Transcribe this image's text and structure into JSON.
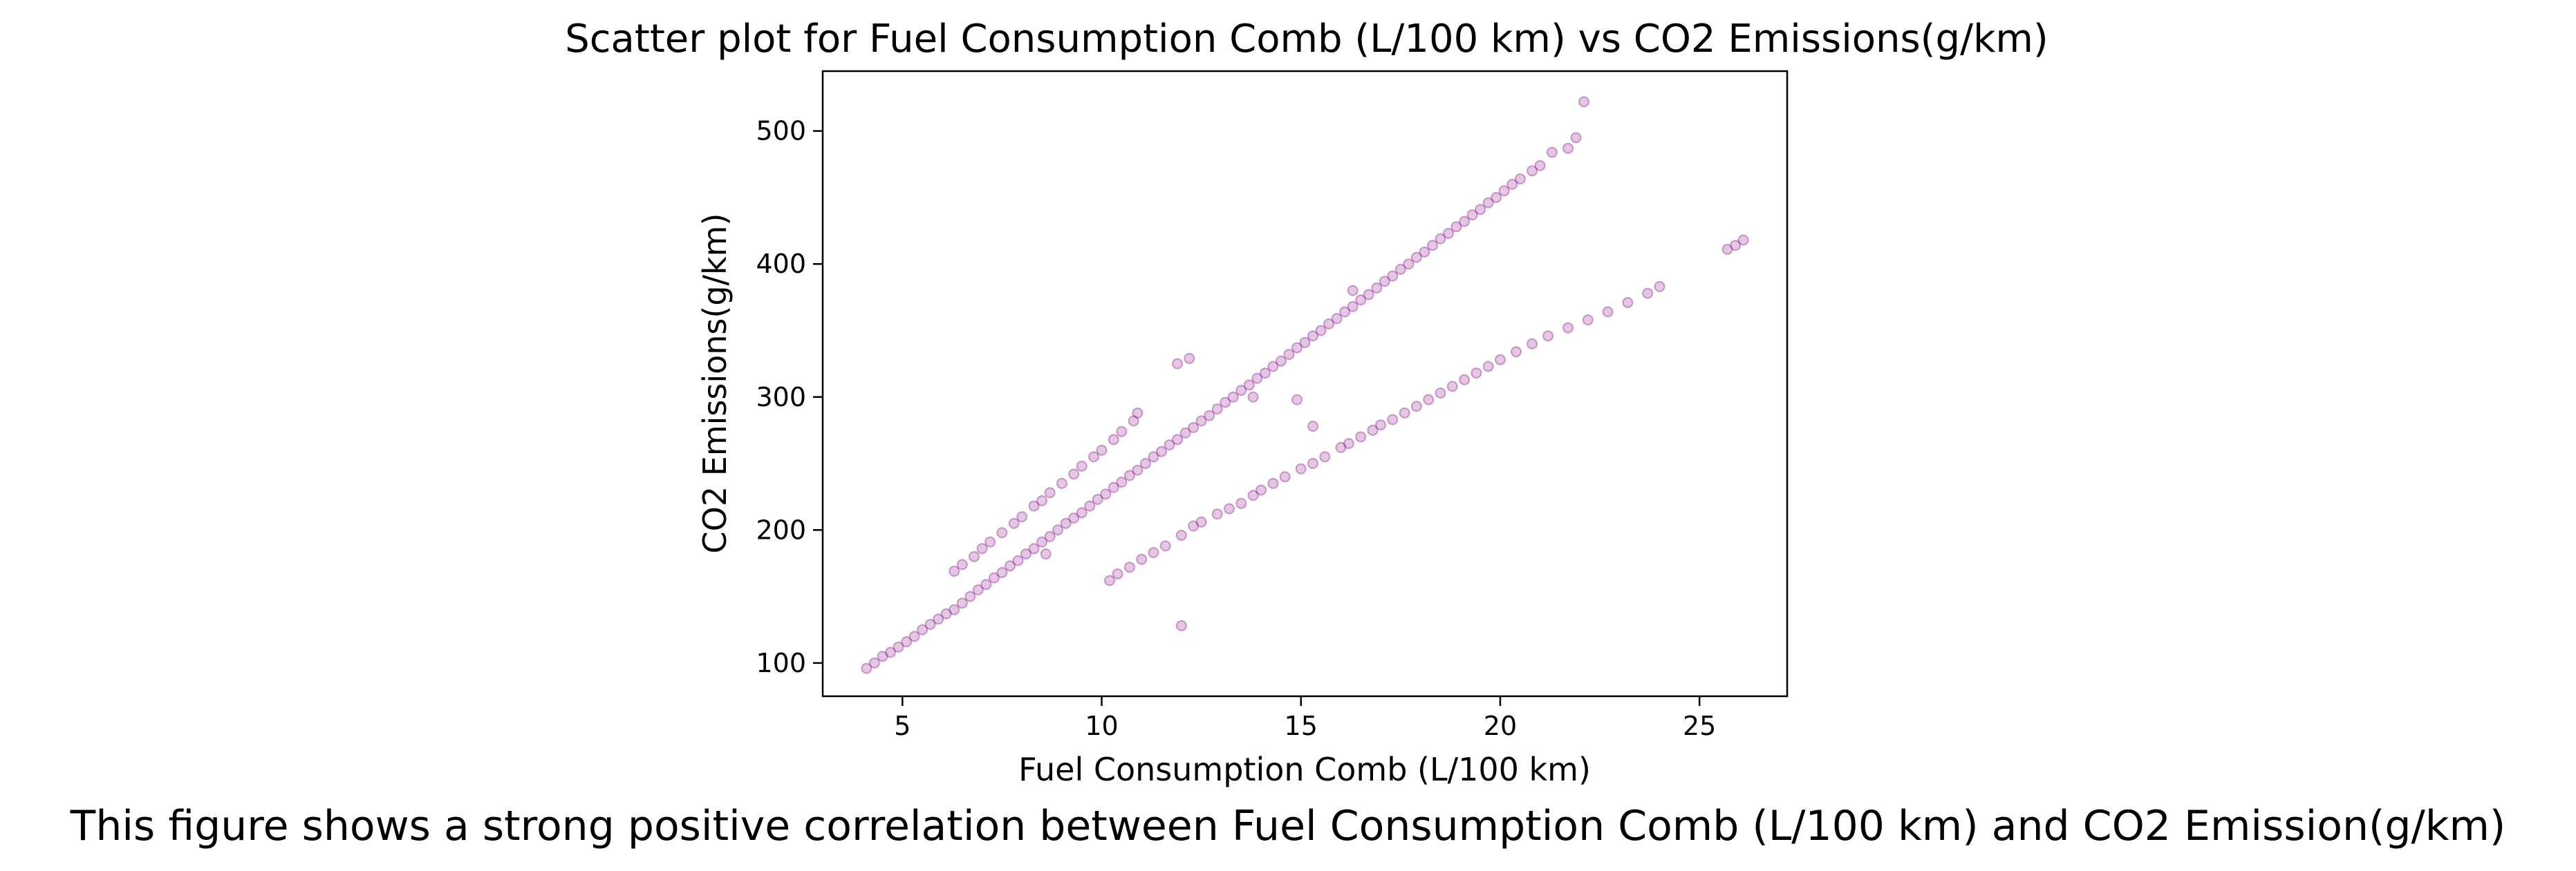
{
  "chart_data": {
    "type": "scatter",
    "title": "Scatter plot for Fuel Consumption Comb (L/100 km) vs CO2 Emissions(g/km)",
    "xlabel": "Fuel Consumption Comb (L/100 km)",
    "ylabel": "CO2 Emissions(g/km)",
    "xlim": [
      3.0,
      27.2
    ],
    "ylim": [
      75,
      545
    ],
    "xticks": [
      5,
      10,
      15,
      20,
      25
    ],
    "yticks": [
      100,
      200,
      300,
      400,
      500
    ],
    "grid": false,
    "legend": "none",
    "marker_color": "#800080",
    "marker_opacity": 0.22,
    "series": [
      {
        "points": [
          [
            4.1,
            96
          ],
          [
            4.3,
            100
          ],
          [
            4.5,
            105
          ],
          [
            4.7,
            108
          ],
          [
            4.9,
            112
          ],
          [
            5.1,
            116
          ],
          [
            5.3,
            120
          ],
          [
            5.5,
            125
          ],
          [
            5.7,
            129
          ],
          [
            5.9,
            133
          ],
          [
            6.1,
            137
          ],
          [
            6.3,
            140
          ],
          [
            6.5,
            145
          ],
          [
            6.7,
            150
          ],
          [
            6.9,
            155
          ],
          [
            7.1,
            159
          ],
          [
            7.3,
            164
          ],
          [
            7.5,
            168
          ],
          [
            7.7,
            173
          ],
          [
            7.9,
            177
          ],
          [
            8.1,
            182
          ],
          [
            8.3,
            186
          ],
          [
            8.5,
            191
          ],
          [
            8.7,
            195
          ],
          [
            8.9,
            200
          ],
          [
            9.1,
            205
          ],
          [
            9.3,
            209
          ],
          [
            9.5,
            213
          ],
          [
            9.7,
            218
          ],
          [
            9.9,
            223
          ],
          [
            10.1,
            227
          ],
          [
            10.3,
            232
          ],
          [
            10.5,
            236
          ],
          [
            10.7,
            241
          ],
          [
            10.9,
            245
          ],
          [
            11.1,
            250
          ],
          [
            11.3,
            255
          ],
          [
            11.5,
            259
          ],
          [
            11.7,
            264
          ],
          [
            11.9,
            268
          ],
          [
            12.1,
            273
          ],
          [
            12.3,
            277
          ],
          [
            12.5,
            282
          ],
          [
            12.7,
            286
          ],
          [
            12.9,
            291
          ],
          [
            13.1,
            296
          ],
          [
            13.3,
            300
          ],
          [
            13.5,
            305
          ],
          [
            13.7,
            309
          ],
          [
            13.9,
            314
          ],
          [
            14.1,
            318
          ],
          [
            14.3,
            323
          ],
          [
            14.5,
            327
          ],
          [
            14.7,
            332
          ],
          [
            14.9,
            337
          ],
          [
            15.1,
            341
          ],
          [
            15.3,
            346
          ],
          [
            15.5,
            350
          ],
          [
            15.7,
            355
          ],
          [
            15.9,
            359
          ],
          [
            16.1,
            364
          ],
          [
            16.3,
            368
          ],
          [
            16.5,
            373
          ],
          [
            16.7,
            377
          ],
          [
            16.9,
            382
          ],
          [
            17.1,
            387
          ],
          [
            17.3,
            391
          ],
          [
            17.5,
            396
          ],
          [
            17.7,
            400
          ],
          [
            17.9,
            405
          ],
          [
            18.1,
            409
          ],
          [
            18.3,
            414
          ],
          [
            18.5,
            419
          ],
          [
            18.7,
            423
          ],
          [
            18.9,
            428
          ],
          [
            19.1,
            432
          ],
          [
            19.3,
            437
          ],
          [
            19.5,
            441
          ],
          [
            19.7,
            446
          ],
          [
            19.9,
            450
          ],
          [
            20.1,
            455
          ],
          [
            20.3,
            460
          ],
          [
            20.5,
            464
          ],
          [
            20.8,
            470
          ],
          [
            21.0,
            474
          ],
          [
            6.3,
            169
          ],
          [
            6.5,
            174
          ],
          [
            6.8,
            180
          ],
          [
            7.0,
            186
          ],
          [
            7.2,
            191
          ],
          [
            7.5,
            198
          ],
          [
            7.8,
            205
          ],
          [
            8.0,
            210
          ],
          [
            8.3,
            218
          ],
          [
            8.5,
            222
          ],
          [
            8.7,
            228
          ],
          [
            9.0,
            235
          ],
          [
            9.3,
            242
          ],
          [
            9.5,
            248
          ],
          [
            9.8,
            255
          ],
          [
            10.0,
            260
          ],
          [
            10.3,
            268
          ],
          [
            10.5,
            274
          ],
          [
            10.8,
            282
          ],
          [
            10.9,
            288
          ],
          [
            10.2,
            162
          ],
          [
            10.4,
            167
          ],
          [
            10.7,
            172
          ],
          [
            11.0,
            178
          ],
          [
            11.3,
            183
          ],
          [
            11.6,
            188
          ],
          [
            12.0,
            196
          ],
          [
            12.3,
            203
          ],
          [
            12.5,
            206
          ],
          [
            12.9,
            212
          ],
          [
            13.2,
            216
          ],
          [
            13.5,
            220
          ],
          [
            13.8,
            226
          ],
          [
            14.0,
            230
          ],
          [
            14.3,
            235
          ],
          [
            14.6,
            240
          ],
          [
            15.0,
            246
          ],
          [
            15.3,
            250
          ],
          [
            15.6,
            255
          ],
          [
            16.0,
            262
          ],
          [
            16.2,
            265
          ],
          [
            16.5,
            270
          ],
          [
            16.8,
            275
          ],
          [
            17.0,
            279
          ],
          [
            17.3,
            283
          ],
          [
            17.6,
            288
          ],
          [
            17.9,
            293
          ],
          [
            18.2,
            298
          ],
          [
            18.5,
            303
          ],
          [
            18.8,
            308
          ],
          [
            19.1,
            313
          ],
          [
            19.4,
            318
          ],
          [
            19.7,
            323
          ],
          [
            20.0,
            328
          ],
          [
            20.4,
            334
          ],
          [
            20.8,
            340
          ],
          [
            21.2,
            346
          ],
          [
            21.7,
            352
          ],
          [
            22.2,
            358
          ],
          [
            22.7,
            364
          ],
          [
            23.2,
            371
          ],
          [
            23.7,
            378
          ],
          [
            24.0,
            383
          ],
          [
            25.7,
            411
          ],
          [
            25.9,
            414
          ],
          [
            26.1,
            418
          ],
          [
            22.1,
            522
          ],
          [
            21.7,
            487
          ],
          [
            21.9,
            495
          ],
          [
            21.3,
            484
          ],
          [
            12.0,
            128
          ],
          [
            11.9,
            325
          ],
          [
            12.2,
            329
          ],
          [
            13.8,
            300
          ],
          [
            15.3,
            278
          ],
          [
            8.6,
            182
          ],
          [
            16.3,
            380
          ],
          [
            14.9,
            298
          ]
        ]
      }
    ],
    "caption": "This figure shows a strong positive correlation between Fuel Consumption Comb (L/100 km) and CO2 Emission(g/km)"
  }
}
